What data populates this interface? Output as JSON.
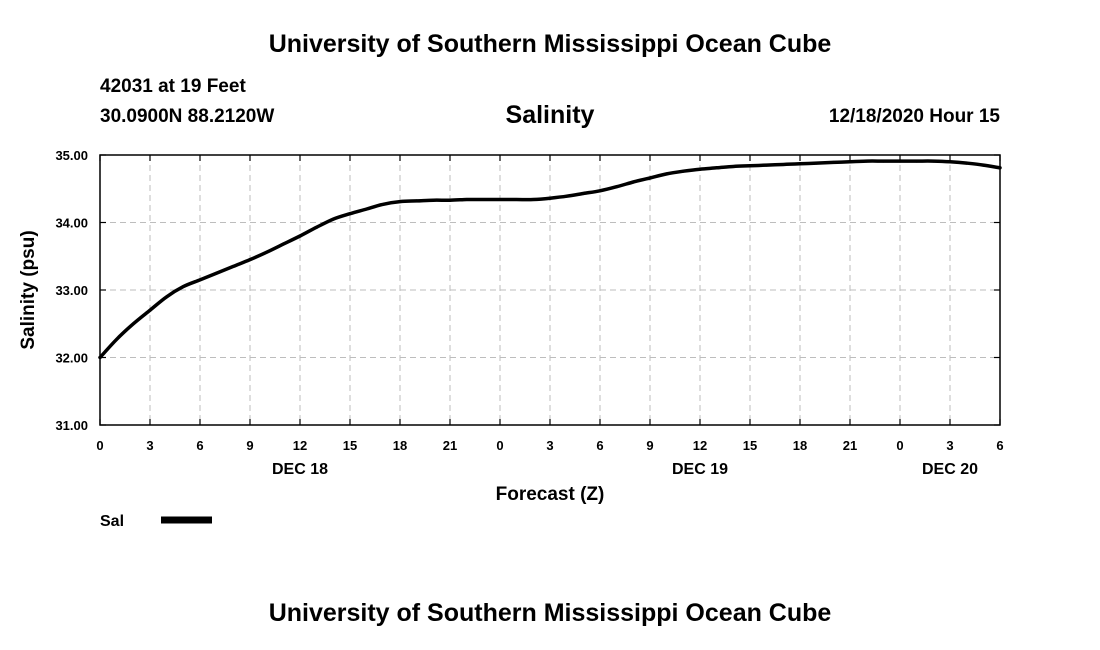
{
  "header": {
    "title": "University of Southern Mississippi Ocean Cube",
    "station": "42031 at 19 Feet",
    "coords": "30.0900N 88.2120W",
    "chart_title": "Salinity",
    "datetime": "12/18/2020 Hour 15"
  },
  "footer": {
    "title": "University of Southern Mississippi Ocean Cube"
  },
  "chart_data": {
    "type": "line",
    "title": "Salinity",
    "xlabel": "Forecast (Z)",
    "ylabel": "Salinity (psu)",
    "ylim": [
      31,
      35
    ],
    "xlim": [
      0,
      54
    ],
    "x_unit": "hours since 00Z DEC 18",
    "grid": true,
    "yticks": [
      31,
      32,
      33,
      34,
      35
    ],
    "ytick_labels": [
      "31.00",
      "32.00",
      "33.00",
      "34.00",
      "35.00"
    ],
    "xticks": [
      0,
      3,
      6,
      9,
      12,
      15,
      18,
      21,
      24,
      27,
      30,
      33,
      36,
      39,
      42,
      45,
      48,
      51,
      54
    ],
    "xtick_labels": [
      "0",
      "3",
      "6",
      "9",
      "12",
      "15",
      "18",
      "21",
      "0",
      "3",
      "6",
      "9",
      "12",
      "15",
      "18",
      "21",
      "0",
      "3",
      "6"
    ],
    "day_labels": [
      {
        "x": 12,
        "label": "DEC 18"
      },
      {
        "x": 36,
        "label": "DEC 19"
      },
      {
        "x": 51,
        "label": "DEC 20"
      }
    ],
    "legend": {
      "position": "bottom-left",
      "entries": [
        {
          "label": "Sal",
          "color": "#000000"
        }
      ]
    },
    "series": [
      {
        "name": "Sal",
        "color": "#000000",
        "x": [
          0,
          1,
          2,
          3,
          4,
          5,
          6,
          7,
          8,
          9,
          10,
          11,
          12,
          13,
          14,
          15,
          16,
          17,
          18,
          19,
          20,
          21,
          22,
          23,
          24,
          25,
          26,
          27,
          28,
          29,
          30,
          31,
          32,
          33,
          34,
          35,
          36,
          37,
          38,
          39,
          40,
          41,
          42,
          43,
          44,
          45,
          46,
          47,
          48,
          49,
          50,
          51,
          52,
          53,
          54
        ],
        "values": [
          32.0,
          32.27,
          32.5,
          32.7,
          32.9,
          33.05,
          33.15,
          33.25,
          33.35,
          33.45,
          33.56,
          33.68,
          33.8,
          33.93,
          34.05,
          34.13,
          34.2,
          34.27,
          34.31,
          34.32,
          34.33,
          34.33,
          34.34,
          34.34,
          34.34,
          34.34,
          34.34,
          34.36,
          34.39,
          34.43,
          34.47,
          34.53,
          34.6,
          34.66,
          34.72,
          34.76,
          34.79,
          34.81,
          34.83,
          34.84,
          34.85,
          34.86,
          34.87,
          34.88,
          34.89,
          34.9,
          34.91,
          34.91,
          34.91,
          34.91,
          34.91,
          34.9,
          34.88,
          34.85,
          34.81
        ]
      }
    ]
  }
}
